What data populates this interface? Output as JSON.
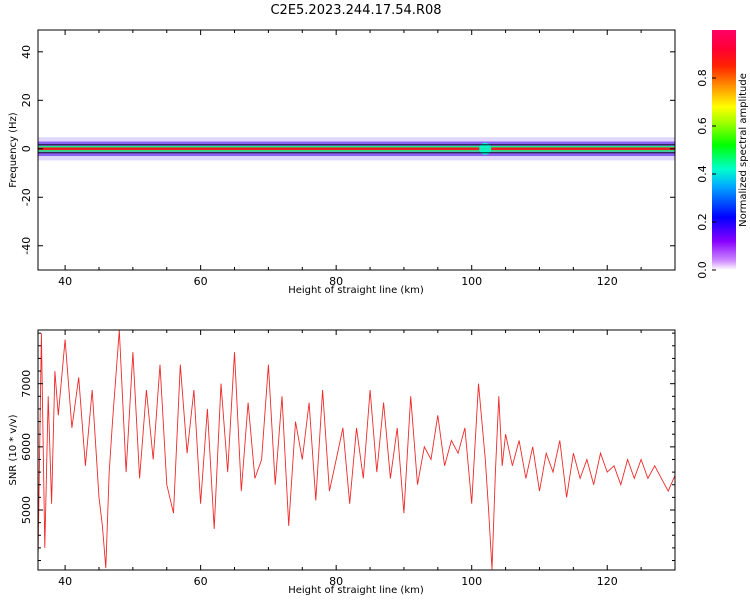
{
  "title": "C2E5.2023.244.17.54.R08",
  "colors": {
    "trace": "#ee2a2a",
    "spectral_core": "#e82020",
    "spectral_mid": "#22ee88",
    "spectral_outer": "#8866ee"
  },
  "chart_data": [
    {
      "id": "spectrogram",
      "type": "heatmap",
      "xlabel": "Height of straight line (km)",
      "ylabel": "Frequency (Hz)",
      "xlim": [
        36,
        130
      ],
      "ylim": [
        -50,
        49
      ],
      "xticks": [
        40,
        60,
        80,
        100,
        120
      ],
      "yticks": [
        40,
        20,
        0,
        -20,
        -40
      ],
      "band_center_hz": 0,
      "band_core_halfwidth_hz": 1,
      "band_outer_halfwidth_hz": 3,
      "notable_disturbance_km": 102,
      "colorbar": {
        "label": "Normalized spectral amplitude",
        "range": [
          0,
          1
        ],
        "ticks": [
          "0.0",
          "0.2",
          "0.4",
          "0.6",
          "0.8"
        ]
      }
    },
    {
      "id": "snr",
      "type": "line",
      "xlabel": "Height of straight line (km)",
      "ylabel": "SNR (10 * v/v)",
      "xlim": [
        36,
        130
      ],
      "ylim": [
        4050,
        7850
      ],
      "xticks": [
        40,
        60,
        80,
        100,
        120
      ],
      "yticks": [
        5000,
        6000,
        7000
      ],
      "series": [
        {
          "x": [
            36,
            36.5,
            37,
            37.5,
            38,
            38.5,
            39,
            40,
            41,
            42,
            43,
            44,
            45,
            45.5,
            46,
            46.5,
            47,
            48,
            49,
            50,
            51,
            52,
            53,
            54,
            55,
            56,
            57,
            58,
            59,
            60,
            61,
            62,
            63,
            64,
            65,
            66,
            67,
            68,
            69,
            70,
            71,
            72,
            73,
            74,
            75,
            76,
            77,
            78,
            79,
            80,
            81,
            82,
            83,
            84,
            85,
            86,
            87,
            88,
            89,
            90,
            91,
            92,
            93,
            94,
            95,
            96,
            97,
            98,
            99,
            100,
            101,
            102,
            102.5,
            103,
            103.5,
            104,
            104.5,
            105,
            106,
            107,
            108,
            109,
            110,
            111,
            112,
            113,
            114,
            115,
            116,
            117,
            118,
            119,
            120,
            121,
            122,
            123,
            124,
            125,
            126,
            127,
            128,
            129,
            130
          ],
          "values": [
            4200,
            7800,
            4400,
            6800,
            5100,
            7200,
            6500,
            7700,
            6300,
            7100,
            5700,
            6900,
            5200,
            4750,
            4080,
            5600,
            6400,
            7850,
            5600,
            7500,
            5500,
            6900,
            5800,
            7300,
            5400,
            4950,
            7300,
            5900,
            6900,
            5100,
            6600,
            4700,
            7000,
            5600,
            7500,
            5300,
            6700,
            5500,
            5800,
            7300,
            5400,
            6800,
            4750,
            6400,
            5800,
            6700,
            5150,
            6900,
            5300,
            5800,
            6300,
            5100,
            6300,
            5500,
            6900,
            5600,
            6700,
            5500,
            6300,
            4950,
            6800,
            5400,
            6000,
            5800,
            6500,
            5700,
            6100,
            5900,
            6300,
            5100,
            7000,
            5800,
            5000,
            4060,
            5600,
            6800,
            5700,
            6200,
            5700,
            6100,
            5500,
            6000,
            5300,
            5900,
            5600,
            6100,
            5200,
            5900,
            5500,
            5800,
            5400,
            5900,
            5600,
            5700,
            5400,
            5800,
            5500,
            5800,
            5500,
            5700,
            5500,
            5300,
            5550
          ]
        }
      ]
    }
  ]
}
